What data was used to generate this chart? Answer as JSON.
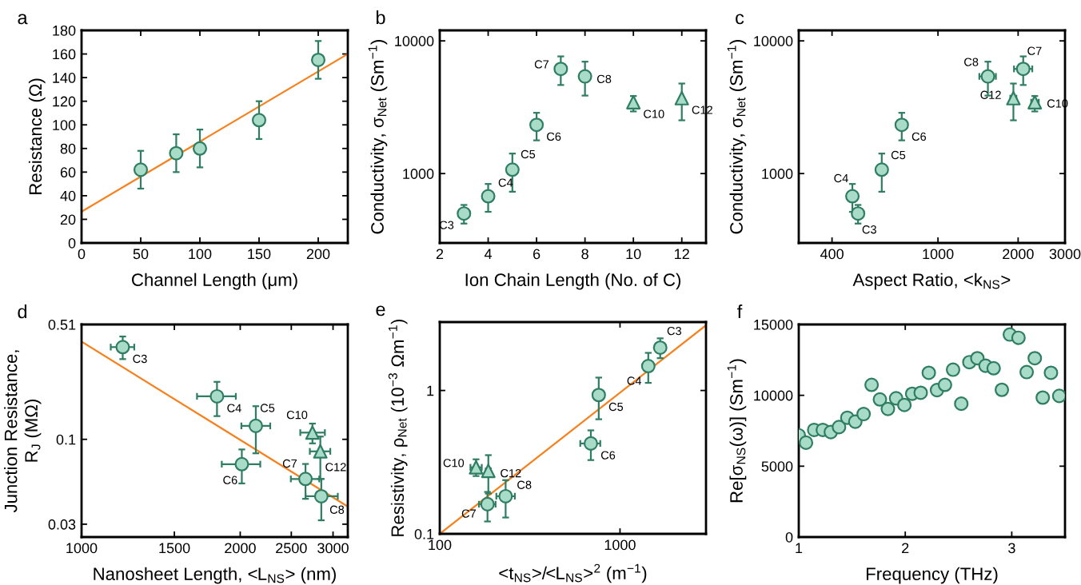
{
  "chart_data": [
    {
      "type": "scatter",
      "title": "a",
      "xlabel": "Channel Length (μm)",
      "ylabel": "Resistance (Ω)",
      "xlim": [
        0,
        225
      ],
      "xticks": [
        0,
        50,
        100,
        150,
        200
      ],
      "ylim": [
        0,
        180
      ],
      "yticks": [
        0,
        20,
        40,
        60,
        80,
        100,
        120,
        140,
        160,
        180
      ],
      "series": [
        {
          "marker": "circle",
          "color": "#a8dcc8",
          "x": [
            50,
            80,
            100,
            150,
            200
          ],
          "values": [
            62,
            76,
            80,
            104,
            155
          ],
          "errors": [
            16,
            16,
            16,
            16,
            16
          ]
        },
        {
          "type": "line",
          "color": "#f5821f",
          "x": [
            0,
            225
          ],
          "values": [
            26.5,
            160
          ]
        }
      ]
    },
    {
      "type": "scatter",
      "title": "b",
      "xlabel": "Ion Chain Length (No. of C)",
      "ylabel": "Conductivity, σ$_{Net}$ (Sm$^{−1}$)",
      "log": "y",
      "xlim": [
        2,
        13
      ],
      "xticks": [
        2,
        4,
        6,
        8,
        10,
        12
      ],
      "ylim": [
        300,
        12000
      ],
      "yticks": [
        1000,
        10000
      ],
      "series": [
        {
          "marker": "circle",
          "color": "#a8dcc8",
          "x": [
            3,
            4,
            5,
            6,
            7,
            8
          ],
          "values": [
            500,
            675,
            1070,
            2330,
            6150,
            5400
          ],
          "errors": [
            [
              420,
              580
            ],
            [
              515,
              835
            ],
            [
              730,
              1415
            ],
            [
              1780,
              2870
            ],
            [
              4650,
              7640
            ],
            [
              3870,
              6970
            ]
          ]
        },
        {
          "marker": "triangle",
          "color": "#a8dcc8",
          "x": [
            10,
            12
          ],
          "values": [
            3450,
            3700
          ],
          "errors": [
            [
              2940,
              3840
            ],
            [
              2520,
              4770
            ]
          ]
        }
      ],
      "annotations": [
        {
          "text": "C3",
          "x": 3,
          "y": 500
        },
        {
          "text": "C4",
          "x": 4,
          "y": 675
        },
        {
          "text": "C5",
          "x": 5,
          "y": 1070
        },
        {
          "text": "C6",
          "x": 6,
          "y": 2330
        },
        {
          "text": "C7",
          "x": 7,
          "y": 6150
        },
        {
          "text": "C8",
          "x": 8,
          "y": 5400
        },
        {
          "text": "C10",
          "x": 10,
          "y": 3450
        },
        {
          "text": "C12",
          "x": 12,
          "y": 3700
        }
      ]
    },
    {
      "type": "scatter",
      "title": "c",
      "xlabel": "Aspect Ratio, <k$_{NS}$>",
      "ylabel": "Conductivity, σ$_{Net}$ (Sm$^{−1}$)",
      "log": "xy",
      "xlim": [
        300,
        3000
      ],
      "xticks": [
        400,
        1000,
        2000,
        3000
      ],
      "ylim": [
        300,
        12000
      ],
      "yticks": [
        1000,
        10000
      ],
      "series": [
        {
          "marker": "circle",
          "color": "#a8dcc8",
          "x": [
            501,
            477,
            615,
            731,
            2090,
            1540
          ],
          "values": [
            500,
            675,
            1070,
            2330,
            6150,
            5400
          ],
          "errors": [
            [
              420,
              580
            ],
            [
              515,
              835
            ],
            [
              730,
              1415
            ],
            [
              1780,
              2870
            ],
            [
              4650,
              7640
            ],
            [
              3870,
              6970
            ]
          ],
          "xerrors": [
            [
              480,
              525
            ],
            [
              460,
              495
            ],
            [
              590,
              640
            ],
            [
              705,
              760
            ],
            [
              1930,
              2260
            ],
            [
              1430,
              1650
            ]
          ]
        },
        {
          "marker": "triangle",
          "color": "#a8dcc8",
          "x": [
            2310,
            1920
          ],
          "values": [
            3450,
            3700
          ],
          "errors": [
            [
              2940,
              3840
            ],
            [
              2520,
              4770
            ]
          ],
          "xerrors": [
            [
              2240,
              2390
            ],
            [
              1870,
              1970
            ]
          ]
        }
      ],
      "annotations": [
        {
          "text": "C3",
          "x": 501,
          "y": 500
        },
        {
          "text": "C4",
          "x": 477,
          "y": 675
        },
        {
          "text": "C5",
          "x": 615,
          "y": 1070
        },
        {
          "text": "C6",
          "x": 731,
          "y": 2330
        },
        {
          "text": "C7",
          "x": 2090,
          "y": 6150
        },
        {
          "text": "C8",
          "x": 1540,
          "y": 5400
        },
        {
          "text": "C12",
          "x": 1920,
          "y": 3700
        },
        {
          "text": "C10",
          "x": 2310,
          "y": 3450
        }
      ]
    },
    {
      "type": "scatter",
      "title": "d",
      "xlabel": "Nanosheet Length, <L$_{NS}$> (nm)",
      "ylabel": "Junction Resistance,\nR$_{J}$ (MΩ)",
      "log": "xy",
      "xlim": [
        1000,
        3200
      ],
      "xticks": [
        1000,
        1500,
        2000,
        2500,
        3000
      ],
      "ylim": [
        0.025,
        0.51
      ],
      "yticks": [
        0.03,
        0.1,
        0.51
      ],
      "series": [
        {
          "type": "line",
          "color": "#f5821f",
          "x": [
            1000,
            3200
          ],
          "values": [
            0.4,
            0.0385
          ]
        },
        {
          "marker": "circle",
          "color": "#a8dcc8",
          "x": [
            1197,
            1807,
            2141,
            2014,
            2660,
            2850
          ],
          "values": [
            0.37,
            0.184,
            0.121,
            0.0703,
            0.057,
            0.0446
          ],
          "errors": [
            [
              0.312,
              0.43
            ],
            [
              0.139,
              0.226
            ],
            [
              0.082,
              0.16
            ],
            [
              0.0535,
              0.0866
            ],
            [
              0.043,
              0.0705
            ],
            [
              0.0317,
              0.057
            ]
          ],
          "xerrors": [
            [
              1136,
              1259
            ],
            [
              1656,
              1962
            ],
            [
              2010,
              2280
            ],
            [
              1845,
              2183
            ],
            [
              2495,
              2825
            ],
            [
              2660,
              3063
            ]
          ]
        },
        {
          "marker": "triangle",
          "color": "#a8dcc8",
          "x": [
            2742,
            2838
          ],
          "values": [
            0.11,
            0.0843
          ],
          "errors": [
            [
              0.0944,
              0.125
            ],
            [
              0.057,
              0.104
            ]
          ],
          "xerrors": [
            [
              2600,
              2895
            ],
            [
              2711,
              2964
            ]
          ]
        }
      ],
      "annotations": [
        {
          "text": "C3",
          "x": 1197,
          "y": 0.37
        },
        {
          "text": "C4",
          "x": 1807,
          "y": 0.184
        },
        {
          "text": "C5",
          "x": 2141,
          "y": 0.121
        },
        {
          "text": "C6",
          "x": 2014,
          "y": 0.0703
        },
        {
          "text": "C7",
          "x": 2660,
          "y": 0.057
        },
        {
          "text": "C8",
          "x": 2850,
          "y": 0.0446
        },
        {
          "text": "C10",
          "x": 2742,
          "y": 0.11
        },
        {
          "text": "C12",
          "x": 2838,
          "y": 0.0843
        }
      ]
    },
    {
      "type": "scatter",
      "title": "e",
      "xlabel": "<t$_{NS}$>/<L$_{NS}$>$^{2}$ (m$^{−1}$)",
      "ylabel": "Resistivity, ρ$_{Net}$ (10$^{−3}$ Ωm$^{−1}$)",
      "log": "xy",
      "xlim": [
        100,
        3000
      ],
      "xticks": [
        100,
        1000
      ],
      "ylim": [
        0.1,
        3
      ],
      "yticks": [
        0.1,
        1
      ],
      "series": [
        {
          "type": "line",
          "color": "#f5821f",
          "x": [
            100,
            3000
          ],
          "values": [
            0.1,
            2.85
          ]
        },
        {
          "marker": "circle",
          "color": "#a8dcc8",
          "x": [
            1671,
            1435,
            762,
            689,
            184,
            232
          ],
          "values": [
            1.99,
            1.48,
            0.93,
            0.427,
            0.161,
            0.183
          ],
          "errors": [
            [
              1.68,
              2.31
            ],
            [
              1.13,
              1.83
            ],
            [
              0.63,
              1.23
            ],
            [
              0.327,
              0.527
            ],
            [
              0.122,
              0.196
            ],
            [
              0.13,
              0.237
            ]
          ],
          "xerrors": [
            [
              1575,
              1795
            ],
            [
              1350,
              1520
            ],
            [
              718,
              810
            ],
            [
              602,
              777
            ],
            [
              165,
              204
            ],
            [
              206,
              261
            ]
          ]
        },
        {
          "marker": "triangle",
          "color": "#a8dcc8",
          "x": [
            159,
            186
          ],
          "values": [
            0.291,
            0.275
          ],
          "errors": [
            [
              0.253,
              0.331
            ],
            [
              0.191,
              0.354
            ]
          ],
          "xerrors": [
            [
              148,
              171
            ],
            [
              180,
              192
            ]
          ]
        }
      ],
      "annotations": [
        {
          "text": "C3",
          "x": 1671,
          "y": 1.99
        },
        {
          "text": "C4",
          "x": 1435,
          "y": 1.48
        },
        {
          "text": "C5",
          "x": 762,
          "y": 0.93
        },
        {
          "text": "C6",
          "x": 689,
          "y": 0.427
        },
        {
          "text": "C7",
          "x": 184,
          "y": 0.161
        },
        {
          "text": "C8",
          "x": 232,
          "y": 0.183
        },
        {
          "text": "C10",
          "x": 159,
          "y": 0.291
        },
        {
          "text": "C12",
          "x": 186,
          "y": 0.275
        }
      ]
    },
    {
      "type": "scatter",
      "title": "f",
      "xlabel": "Frequency (THz)",
      "ylabel": "Re[σ$_{NS}$(ω)] (Sm$^{−1}$)",
      "xlim": [
        1,
        3.5
      ],
      "xticks": [
        1,
        2,
        3
      ],
      "ylim": [
        0,
        15000
      ],
      "yticks": [
        0,
        5000,
        10000,
        15000
      ],
      "series": [
        {
          "marker": "circle",
          "color": "#a8dcc8",
          "x": [
            1.0,
            1.068,
            1.145,
            1.226,
            1.301,
            1.378,
            1.456,
            1.531,
            1.609,
            1.684,
            1.762,
            1.837,
            1.914,
            1.992,
            2.065,
            2.145,
            2.221,
            2.298,
            2.373,
            2.449,
            2.526,
            2.602,
            2.677,
            2.754,
            2.83,
            2.907,
            2.982,
            3.063,
            3.14,
            3.216,
            3.291,
            3.368,
            3.446
          ],
          "values": [
            7180,
            6660,
            7560,
            7560,
            7410,
            7760,
            8420,
            8140,
            8680,
            10740,
            9710,
            9040,
            9790,
            9320,
            10110,
            10180,
            11590,
            10370,
            10740,
            11810,
            9410,
            12340,
            12620,
            12090,
            11910,
            10390,
            14290,
            14060,
            11640,
            12620,
            9840,
            11590,
            9960
          ]
        }
      ]
    }
  ]
}
